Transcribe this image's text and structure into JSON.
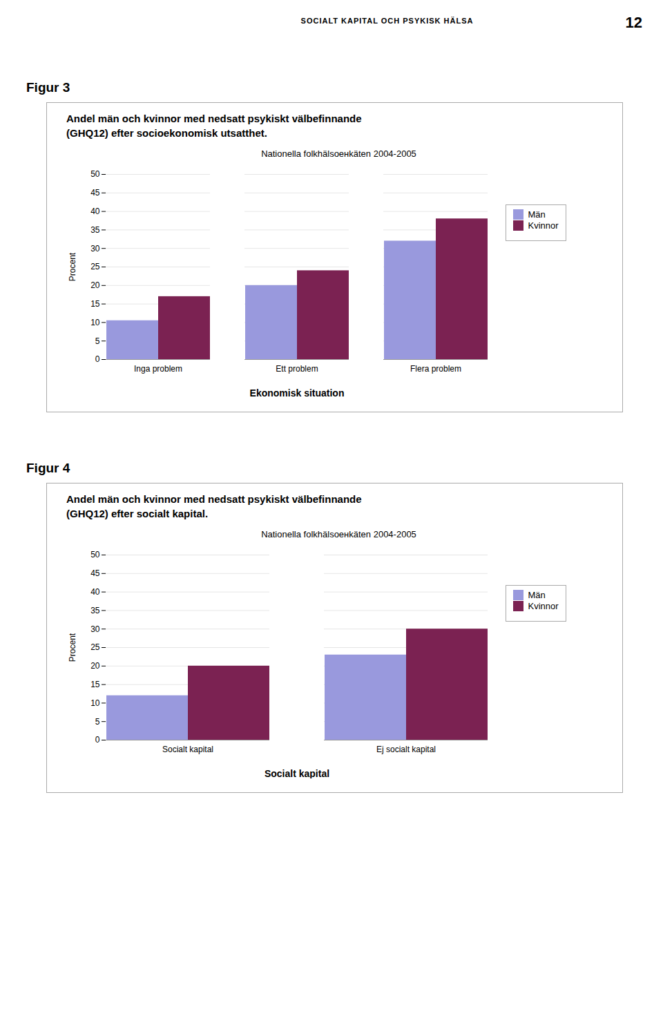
{
  "page_header": "SOCIALT KAPITAL OCH PSYKISK HÄLSA",
  "page_number": "12",
  "chart_data": [
    {
      "type": "bar",
      "label": "Figur 3",
      "title": "Andel män och kvinnor med nedsatt psykiskt välbefinnande\n(GHQ12) efter socioekonomisk utsatthet.",
      "subtitle": "Nationella folkhälsoенkäten 2004-2005",
      "categories": [
        "Inga problem",
        "Ett problem",
        "Flera problem"
      ],
      "series": [
        {
          "name": "Män",
          "color": "#9999dd",
          "values": [
            10.5,
            20.0,
            32.0
          ]
        },
        {
          "name": "Kvinnor",
          "color": "#7b2252",
          "values": [
            17.0,
            24.0,
            38.0
          ]
        }
      ],
      "xlabel": "Ekonomisk situation",
      "ylabel": "Procent",
      "ylim": [
        0,
        50
      ],
      "yticks": [
        0,
        5,
        10,
        15,
        20,
        25,
        30,
        35,
        40,
        45,
        50
      ],
      "grid": true,
      "legend": "right"
    },
    {
      "type": "bar",
      "label": "Figur 4",
      "title": "Andel män och kvinnor med nedsatt psykiskt välbefinnande\n(GHQ12) efter socialt kapital.",
      "subtitle": "Nationella folkhälsoенkäten 2004-2005",
      "categories": [
        "Socialt kapital",
        "Ej socialt kapital"
      ],
      "series": [
        {
          "name": "Män",
          "color": "#9999dd",
          "values": [
            12.0,
            23.0
          ]
        },
        {
          "name": "Kvinnor",
          "color": "#7b2252",
          "values": [
            20.0,
            30.0
          ]
        }
      ],
      "xlabel": "Socialt kapital",
      "ylabel": "Procent",
      "ylim": [
        0,
        50
      ],
      "yticks": [
        0,
        5,
        10,
        15,
        20,
        25,
        30,
        35,
        40,
        45,
        50
      ],
      "grid": true,
      "legend": "right"
    }
  ]
}
